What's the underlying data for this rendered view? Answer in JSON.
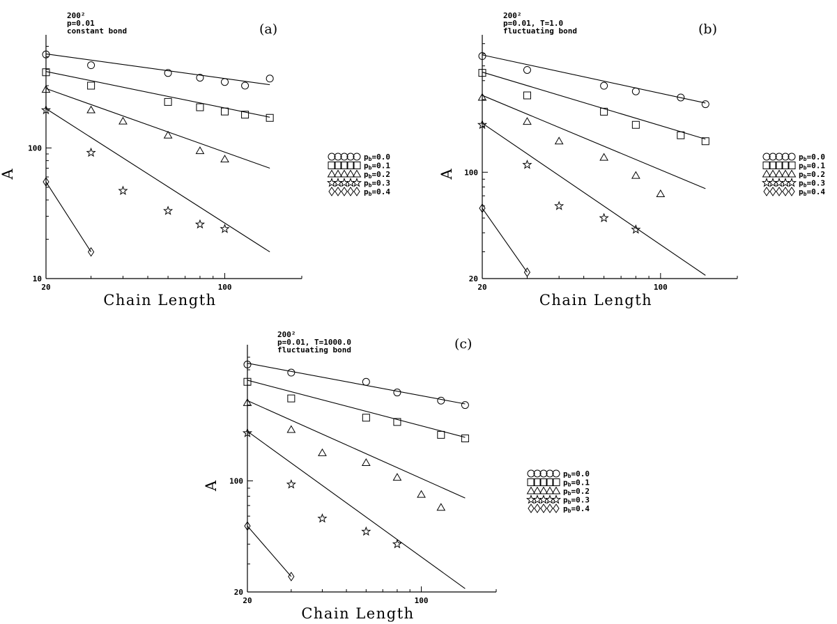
{
  "figure": {
    "legend_swatch_count": 5
  },
  "chart_data": [
    {
      "type": "scatter",
      "panel_label": "(a)",
      "title": "",
      "annotation_lines": [
        "200²",
        "p=0.01",
        "constant bond"
      ],
      "xlabel": "Chain Length",
      "ylabel": "A",
      "xscale": "log",
      "yscale": "log",
      "xlim": [
        20,
        200
      ],
      "ylim": [
        10,
        650
      ],
      "xticks": [
        20,
        100
      ],
      "xtick_labels": [
        "20",
        "100"
      ],
      "yticks": [
        10,
        100
      ],
      "ytick_labels": [
        "10",
        "100"
      ],
      "grid": false,
      "legend_placement": "right",
      "series": [
        {
          "name": "p₀=0.0",
          "label_main": "p",
          "label_sub": "b",
          "label_rest": "=0.0",
          "marker": "circle",
          "x": [
            20,
            30,
            60,
            80,
            100,
            120,
            150
          ],
          "y": [
            520,
            430,
            375,
            345,
            320,
            300,
            340
          ],
          "fit_x": [
            20,
            150
          ],
          "fit_y": [
            525,
            305
          ]
        },
        {
          "name": "p₀=0.1",
          "label_main": "p",
          "label_sub": "b",
          "label_rest": "=0.1",
          "marker": "square",
          "x": [
            20,
            30,
            60,
            80,
            100,
            120,
            150
          ],
          "y": [
            380,
            300,
            225,
            205,
            190,
            180,
            170
          ],
          "fit_x": [
            20,
            150
          ],
          "fit_y": [
            385,
            172
          ]
        },
        {
          "name": "p₀=0.2",
          "label_main": "p",
          "label_sub": "b",
          "label_rest": "=0.2",
          "marker": "triangle",
          "x": [
            20,
            30,
            40,
            60,
            80,
            100
          ],
          "y": [
            280,
            195,
            160,
            125,
            95,
            82
          ],
          "fit_x": [
            20,
            150
          ],
          "fit_y": [
            285,
            70
          ]
        },
        {
          "name": "p₀=0.3",
          "label_main": "p",
          "label_sub": "b",
          "label_rest": "=0.3",
          "marker": "star",
          "x": [
            20,
            30,
            40,
            60,
            80,
            100
          ],
          "y": [
            195,
            92,
            47,
            33,
            26,
            24
          ],
          "fit_x": [
            20,
            150
          ],
          "fit_y": [
            200,
            16
          ]
        },
        {
          "name": "p₀=0.4",
          "label_main": "p",
          "label_sub": "b",
          "label_rest": "=0.4",
          "marker": "diamond",
          "x": [
            20,
            30
          ],
          "y": [
            55,
            16
          ],
          "fit_x": [
            20,
            30
          ],
          "fit_y": [
            55,
            16
          ]
        }
      ]
    },
    {
      "type": "scatter",
      "panel_label": "(b)",
      "title": "",
      "annotation_lines": [
        "200²",
        "p=0.01, T=1.0",
        "fluctuating bond"
      ],
      "xlabel": "Chain Length",
      "ylabel": "A",
      "xscale": "log",
      "yscale": "log",
      "xlim": [
        20,
        200
      ],
      "ylim": [
        20,
        720
      ],
      "xticks": [
        20,
        100
      ],
      "xtick_labels": [
        "20",
        "100"
      ],
      "yticks": [
        20,
        100
      ],
      "ytick_labels": [
        "20",
        "100"
      ],
      "grid": false,
      "legend_placement": "right",
      "series": [
        {
          "name": "p₀=0.0",
          "label_main": "p",
          "label_sub": "b",
          "label_rest": "=0.0",
          "marker": "circle",
          "x": [
            20,
            30,
            60,
            80,
            120,
            150
          ],
          "y": [
            580,
            470,
            370,
            340,
            310,
            280
          ],
          "fit_x": [
            20,
            150
          ],
          "fit_y": [
            590,
            285
          ]
        },
        {
          "name": "p₀=0.1",
          "label_main": "p",
          "label_sub": "b",
          "label_rest": "=0.1",
          "marker": "square",
          "x": [
            20,
            30,
            60,
            80,
            120,
            150
          ],
          "y": [
            450,
            320,
            250,
            205,
            175,
            160
          ],
          "fit_x": [
            20,
            150
          ],
          "fit_y": [
            455,
            165
          ]
        },
        {
          "name": "p₀=0.2",
          "label_main": "p",
          "label_sub": "b",
          "label_rest": "=0.2",
          "marker": "triangle",
          "x": [
            20,
            30,
            40,
            60,
            80,
            100
          ],
          "y": [
            310,
            215,
            160,
            125,
            95,
            72
          ],
          "fit_x": [
            20,
            150
          ],
          "fit_y": [
            320,
            78
          ]
        },
        {
          "name": "p₀=0.3",
          "label_main": "p",
          "label_sub": "b",
          "label_rest": "=0.3",
          "marker": "star",
          "x": [
            20,
            30,
            40,
            60,
            80
          ],
          "y": [
            205,
            112,
            60,
            50,
            42
          ],
          "fit_x": [
            20,
            150
          ],
          "fit_y": [
            210,
            21
          ]
        },
        {
          "name": "p₀=0.4",
          "label_main": "p",
          "label_sub": "b",
          "label_rest": "=0.4",
          "marker": "diamond",
          "x": [
            20,
            30
          ],
          "y": [
            58,
            22
          ],
          "fit_x": [
            20,
            30
          ],
          "fit_y": [
            58,
            22
          ]
        }
      ]
    },
    {
      "type": "scatter",
      "panel_label": "(c)",
      "title": "",
      "annotation_lines": [
        "200²",
        "p=0.01, T=1000.0",
        "fluctuating bond"
      ],
      "xlabel": "Chain Length",
      "ylabel": "A",
      "xscale": "log",
      "yscale": "log",
      "xlim": [
        20,
        200
      ],
      "ylim": [
        20,
        650
      ],
      "xticks": [
        20,
        100
      ],
      "xtick_labels": [
        "20",
        "100"
      ],
      "yticks": [
        20,
        100
      ],
      "ytick_labels": [
        "20",
        "100"
      ],
      "grid": false,
      "legend_placement": "right",
      "series": [
        {
          "name": "p₀=0.0",
          "label_main": "p",
          "label_sub": "b",
          "label_rest": "=0.0",
          "marker": "circle",
          "x": [
            20,
            30,
            60,
            80,
            120,
            150
          ],
          "y": [
            540,
            480,
            420,
            360,
            320,
            300
          ],
          "fit_x": [
            20,
            150
          ],
          "fit_y": [
            550,
            305
          ]
        },
        {
          "name": "p₀=0.1",
          "label_main": "p",
          "label_sub": "b",
          "label_rest": "=0.1",
          "marker": "square",
          "x": [
            20,
            30,
            60,
            80,
            120,
            150
          ],
          "y": [
            420,
            330,
            250,
            235,
            195,
            185
          ],
          "fit_x": [
            20,
            150
          ],
          "fit_y": [
            430,
            188
          ]
        },
        {
          "name": "p₀=0.2",
          "label_main": "p",
          "label_sub": "b",
          "label_rest": "=0.2",
          "marker": "triangle",
          "x": [
            20,
            30,
            40,
            60,
            80,
            100,
            120
          ],
          "y": [
            310,
            210,
            150,
            130,
            105,
            82,
            68
          ],
          "fit_x": [
            20,
            150
          ],
          "fit_y": [
            320,
            78
          ]
        },
        {
          "name": "p₀=0.3",
          "label_main": "p",
          "label_sub": "b",
          "label_rest": "=0.3",
          "marker": "star",
          "x": [
            20,
            30,
            40,
            60,
            80
          ],
          "y": [
            200,
            95,
            58,
            48,
            40
          ],
          "fit_x": [
            20,
            150
          ],
          "fit_y": [
            205,
            21
          ]
        },
        {
          "name": "p₀=0.4",
          "label_main": "p",
          "label_sub": "b",
          "label_rest": "=0.4",
          "marker": "diamond",
          "x": [
            20,
            30
          ],
          "y": [
            52,
            25
          ],
          "fit_x": [
            20,
            30
          ],
          "fit_y": [
            52,
            25
          ]
        }
      ]
    }
  ]
}
